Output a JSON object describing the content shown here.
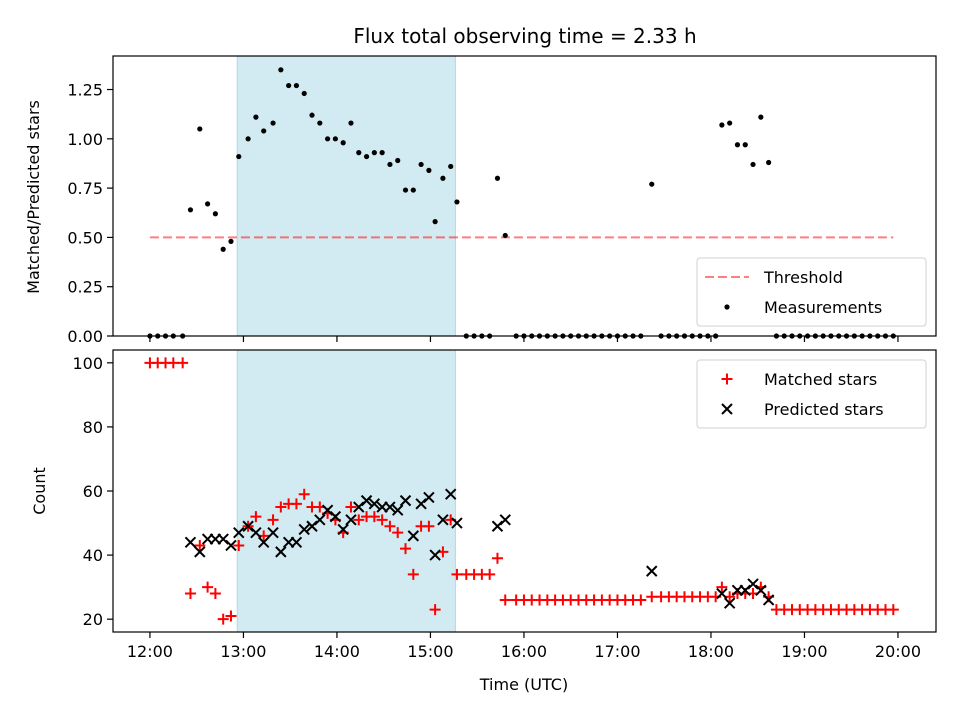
{
  "title": "Flux total observing time = 2.33 h",
  "colors": {
    "shade": "#add8e6",
    "threshold": "#ff0000",
    "matched": "#ff0000",
    "predicted": "#000000",
    "measurement": "#000000"
  },
  "chart_data": [
    {
      "type": "scatter",
      "ylabel": "Matched/Predicted stars",
      "xlim": [
        "12:00",
        "20:00"
      ],
      "ylim": [
        0,
        1.42
      ],
      "y_ticks": [
        "0.00",
        "0.25",
        "0.50",
        "0.75",
        "1.00",
        "1.25"
      ],
      "shaded_span": [
        "12:56",
        "15:16"
      ],
      "legend": [
        "Threshold",
        "Measurements"
      ],
      "legend_position": "lower-right",
      "threshold": {
        "name": "Threshold",
        "y": 0.5,
        "x_range": [
          "12:00",
          "19:57"
        ]
      },
      "series": [
        {
          "name": "Measurements",
          "points": [
            [
              "12:00",
              0
            ],
            [
              "12:05",
              0
            ],
            [
              "12:10",
              0
            ],
            [
              "12:15",
              0
            ],
            [
              "12:21",
              0
            ],
            [
              "12:26",
              0.64
            ],
            [
              "12:32",
              1.05
            ],
            [
              "12:37",
              0.67
            ],
            [
              "12:42",
              0.62
            ],
            [
              "12:47",
              0.44
            ],
            [
              "12:52",
              0.48
            ],
            [
              "12:57",
              0.91
            ],
            [
              "13:03",
              1.0
            ],
            [
              "13:08",
              1.11
            ],
            [
              "13:13",
              1.04
            ],
            [
              "13:19",
              1.08
            ],
            [
              "13:24",
              1.35
            ],
            [
              "13:29",
              1.27
            ],
            [
              "13:34",
              1.27
            ],
            [
              "13:39",
              1.23
            ],
            [
              "13:44",
              1.12
            ],
            [
              "13:49",
              1.08
            ],
            [
              "13:54",
              1.0
            ],
            [
              "13:59",
              1.0
            ],
            [
              "14:04",
              0.98
            ],
            [
              "14:09",
              1.08
            ],
            [
              "14:14",
              0.93
            ],
            [
              "14:19",
              0.91
            ],
            [
              "14:24",
              0.93
            ],
            [
              "14:29",
              0.93
            ],
            [
              "14:34",
              0.87
            ],
            [
              "14:39",
              0.89
            ],
            [
              "14:44",
              0.74
            ],
            [
              "14:49",
              0.74
            ],
            [
              "14:54",
              0.87
            ],
            [
              "14:59",
              0.84
            ],
            [
              "15:03",
              0.58
            ],
            [
              "15:08",
              0.8
            ],
            [
              "15:13",
              0.86
            ],
            [
              "15:17",
              0.68
            ],
            [
              "15:23",
              0
            ],
            [
              "15:28",
              0
            ],
            [
              "15:33",
              0
            ],
            [
              "15:38",
              0
            ],
            [
              "15:43",
              0.8
            ],
            [
              "15:48",
              0.51
            ],
            [
              "15:55",
              0
            ],
            [
              "16:00",
              0
            ],
            [
              "16:05",
              0
            ],
            [
              "16:10",
              0
            ],
            [
              "16:15",
              0
            ],
            [
              "16:20",
              0
            ],
            [
              "16:25",
              0
            ],
            [
              "16:30",
              0
            ],
            [
              "16:35",
              0
            ],
            [
              "16:40",
              0
            ],
            [
              "16:45",
              0
            ],
            [
              "16:50",
              0
            ],
            [
              "16:55",
              0
            ],
            [
              "17:00",
              0
            ],
            [
              "17:05",
              0
            ],
            [
              "17:10",
              0
            ],
            [
              "17:15",
              0
            ],
            [
              "17:22",
              0.77
            ],
            [
              "17:28",
              0
            ],
            [
              "17:33",
              0
            ],
            [
              "17:38",
              0
            ],
            [
              "17:43",
              0
            ],
            [
              "17:48",
              0
            ],
            [
              "17:53",
              0
            ],
            [
              "17:58",
              0
            ],
            [
              "18:03",
              0
            ],
            [
              "18:07",
              1.07
            ],
            [
              "18:12",
              1.08
            ],
            [
              "18:17",
              0.97
            ],
            [
              "18:22",
              0.97
            ],
            [
              "18:27",
              0.87
            ],
            [
              "18:32",
              1.11
            ],
            [
              "18:37",
              0.88
            ],
            [
              "18:42",
              0
            ],
            [
              "18:47",
              0
            ],
            [
              "18:52",
              0
            ],
            [
              "18:57",
              0
            ],
            [
              "19:02",
              0
            ],
            [
              "19:07",
              0
            ],
            [
              "19:12",
              0
            ],
            [
              "19:17",
              0
            ],
            [
              "19:22",
              0
            ],
            [
              "19:27",
              0
            ],
            [
              "19:32",
              0
            ],
            [
              "19:37",
              0
            ],
            [
              "19:42",
              0
            ],
            [
              "19:47",
              0
            ],
            [
              "19:52",
              0
            ],
            [
              "19:57",
              0
            ]
          ]
        }
      ]
    },
    {
      "type": "scatter",
      "xlabel": "Time (UTC)",
      "ylabel": "Count",
      "xlim": [
        "12:00",
        "20:00"
      ],
      "ylim": [
        16,
        104
      ],
      "x_ticks": [
        "12:00",
        "13:00",
        "14:00",
        "15:00",
        "16:00",
        "17:00",
        "18:00",
        "19:00",
        "20:00"
      ],
      "y_ticks": [
        "20",
        "40",
        "60",
        "80",
        "100"
      ],
      "shaded_span": [
        "12:56",
        "15:16"
      ],
      "legend": [
        "Matched stars",
        "Predicted stars"
      ],
      "legend_position": "upper-right",
      "series": [
        {
          "name": "Matched stars",
          "points": [
            [
              "12:00",
              100
            ],
            [
              "12:05",
              100
            ],
            [
              "12:10",
              100
            ],
            [
              "12:15",
              100
            ],
            [
              "12:21",
              100
            ],
            [
              "12:26",
              28
            ],
            [
              "12:32",
              43
            ],
            [
              "12:37",
              30
            ],
            [
              "12:42",
              28
            ],
            [
              "12:47",
              20
            ],
            [
              "12:52",
              21
            ],
            [
              "12:57",
              43
            ],
            [
              "13:03",
              49
            ],
            [
              "13:08",
              52
            ],
            [
              "13:13",
              46
            ],
            [
              "13:19",
              51
            ],
            [
              "13:24",
              55
            ],
            [
              "13:29",
              56
            ],
            [
              "13:34",
              56
            ],
            [
              "13:39",
              59
            ],
            [
              "13:44",
              55
            ],
            [
              "13:49",
              55
            ],
            [
              "13:54",
              53
            ],
            [
              "13:59",
              51
            ],
            [
              "14:04",
              47
            ],
            [
              "14:09",
              55
            ],
            [
              "14:14",
              51
            ],
            [
              "14:19",
              52
            ],
            [
              "14:24",
              52
            ],
            [
              "14:29",
              51
            ],
            [
              "14:34",
              49
            ],
            [
              "14:39",
              47
            ],
            [
              "14:44",
              42
            ],
            [
              "14:49",
              34
            ],
            [
              "14:54",
              49
            ],
            [
              "14:59",
              49
            ],
            [
              "15:03",
              23
            ],
            [
              "15:08",
              41
            ],
            [
              "15:13",
              51
            ],
            [
              "15:17",
              34
            ],
            [
              "15:23",
              34
            ],
            [
              "15:28",
              34
            ],
            [
              "15:33",
              34
            ],
            [
              "15:38",
              34
            ],
            [
              "15:43",
              39
            ],
            [
              "15:48",
              26
            ],
            [
              "15:55",
              26
            ],
            [
              "16:00",
              26
            ],
            [
              "16:05",
              26
            ],
            [
              "16:10",
              26
            ],
            [
              "16:15",
              26
            ],
            [
              "16:20",
              26
            ],
            [
              "16:25",
              26
            ],
            [
              "16:30",
              26
            ],
            [
              "16:35",
              26
            ],
            [
              "16:40",
              26
            ],
            [
              "16:45",
              26
            ],
            [
              "16:50",
              26
            ],
            [
              "16:55",
              26
            ],
            [
              "17:00",
              26
            ],
            [
              "17:05",
              26
            ],
            [
              "17:10",
              26
            ],
            [
              "17:15",
              26
            ],
            [
              "17:22",
              27
            ],
            [
              "17:28",
              27
            ],
            [
              "17:33",
              27
            ],
            [
              "17:38",
              27
            ],
            [
              "17:43",
              27
            ],
            [
              "17:48",
              27
            ],
            [
              "17:53",
              27
            ],
            [
              "17:58",
              27
            ],
            [
              "18:03",
              27
            ],
            [
              "18:07",
              30
            ],
            [
              "18:12",
              27
            ],
            [
              "18:17",
              28
            ],
            [
              "18:22",
              28
            ],
            [
              "18:27",
              28
            ],
            [
              "18:32",
              30
            ],
            [
              "18:37",
              27
            ],
            [
              "18:42",
              23
            ],
            [
              "18:47",
              23
            ],
            [
              "18:52",
              23
            ],
            [
              "18:57",
              23
            ],
            [
              "19:02",
              23
            ],
            [
              "19:07",
              23
            ],
            [
              "19:12",
              23
            ],
            [
              "19:17",
              23
            ],
            [
              "19:22",
              23
            ],
            [
              "19:27",
              23
            ],
            [
              "19:32",
              23
            ],
            [
              "19:37",
              23
            ],
            [
              "19:42",
              23
            ],
            [
              "19:47",
              23
            ],
            [
              "19:52",
              23
            ],
            [
              "19:57",
              23
            ]
          ]
        },
        {
          "name": "Predicted stars",
          "points": [
            [
              "12:26",
              44
            ],
            [
              "12:32",
              41
            ],
            [
              "12:37",
              45
            ],
            [
              "12:42",
              45
            ],
            [
              "12:47",
              45
            ],
            [
              "12:52",
              43
            ],
            [
              "12:57",
              47
            ],
            [
              "13:03",
              49
            ],
            [
              "13:08",
              47
            ],
            [
              "13:13",
              44
            ],
            [
              "13:19",
              47
            ],
            [
              "13:24",
              41
            ],
            [
              "13:29",
              44
            ],
            [
              "13:34",
              44
            ],
            [
              "13:39",
              48
            ],
            [
              "13:44",
              49
            ],
            [
              "13:49",
              51
            ],
            [
              "13:54",
              54
            ],
            [
              "13:59",
              52
            ],
            [
              "14:04",
              48
            ],
            [
              "14:09",
              51
            ],
            [
              "14:14",
              55
            ],
            [
              "14:19",
              57
            ],
            [
              "14:24",
              56
            ],
            [
              "14:29",
              55
            ],
            [
              "14:34",
              55
            ],
            [
              "14:39",
              54
            ],
            [
              "14:44",
              57
            ],
            [
              "14:49",
              46
            ],
            [
              "14:54",
              56
            ],
            [
              "14:59",
              58
            ],
            [
              "15:03",
              40
            ],
            [
              "15:08",
              51
            ],
            [
              "15:13",
              59
            ],
            [
              "15:17",
              50
            ],
            [
              "15:43",
              49
            ],
            [
              "15:48",
              51
            ],
            [
              "17:22",
              35
            ],
            [
              "18:07",
              28
            ],
            [
              "18:12",
              25
            ],
            [
              "18:17",
              29
            ],
            [
              "18:22",
              29
            ],
            [
              "18:27",
              31
            ],
            [
              "18:32",
              29
            ],
            [
              "18:37",
              26
            ]
          ]
        }
      ]
    }
  ]
}
